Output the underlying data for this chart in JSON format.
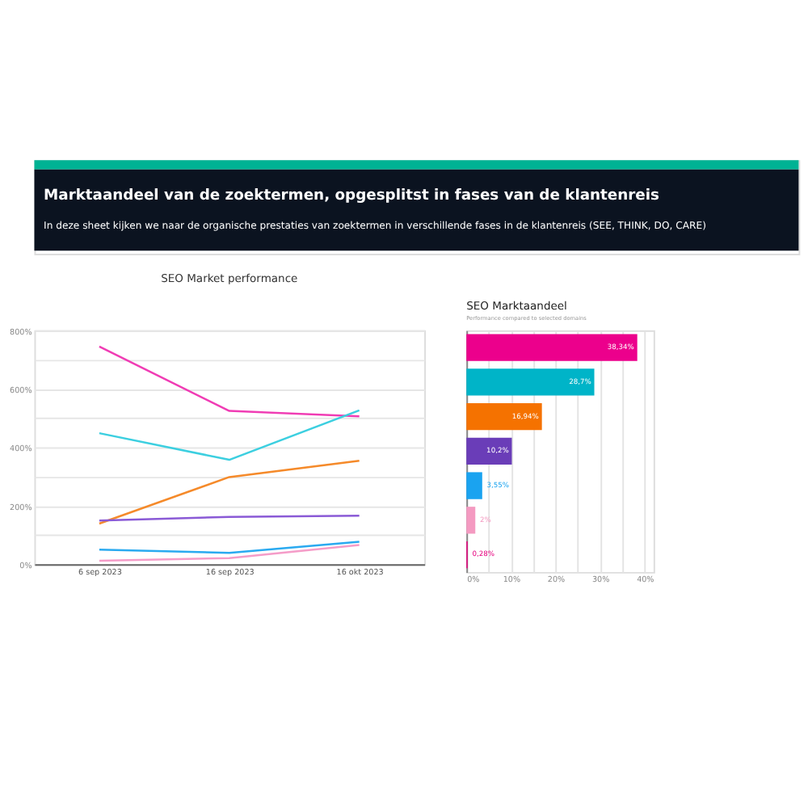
{
  "chart_data": [
    {
      "type": "other",
      "title": "Marktaandeel van de zoektermen, opgesplitst in fases van de klantenreis",
      "subtitle": "In deze sheet kijken we naar de organische prestaties van zoektermen in verschillende fases in de klantenreis (SEE, THINK, DO, CARE)"
    },
    {
      "type": "line",
      "title": "SEO Market performance",
      "categories": [
        "6 sep 2023",
        "16 sep 2023",
        "16 okt 2023"
      ],
      "series": [
        {
          "color": "#f03cb4",
          "values": [
            744,
            524,
            506
          ]
        },
        {
          "color": "#3ccfe0",
          "values": [
            448,
            357,
            526
          ]
        },
        {
          "color": "#f58a2a",
          "values": [
            139,
            298,
            354
          ]
        },
        {
          "color": "#8a5ad6",
          "values": [
            149,
            162,
            166
          ]
        },
        {
          "color": "#2aaaf0",
          "values": [
            50,
            39,
            77
          ]
        },
        {
          "color": "#f59cc8",
          "values": [
            12,
            21,
            66
          ]
        }
      ],
      "ylim": [
        0,
        800
      ],
      "yticks": [
        {
          "value": 0,
          "label": "0%"
        },
        {
          "value": 100,
          "label": null
        },
        {
          "value": 200,
          "label": "200%"
        },
        {
          "value": 300,
          "label": null
        },
        {
          "value": 400,
          "label": "400%"
        },
        {
          "value": 500,
          "label": null
        },
        {
          "value": 600,
          "label": "600%"
        },
        {
          "value": 700,
          "label": null
        },
        {
          "value": 800,
          "label": "800%"
        }
      ],
      "grid": "y",
      "legend": false,
      "marker": "none",
      "line_style": "solid"
    },
    {
      "type": "bar",
      "orientation": "horizontal",
      "title": "SEO Marktaandeel",
      "subtitle": "Performance compared to selected domains",
      "categories": [
        null,
        null,
        null,
        null,
        null,
        null,
        null
      ],
      "values": [
        38.34,
        28.7,
        16.94,
        10.2,
        3.55,
        2,
        0.28
      ],
      "colors": [
        "#ec008c",
        "#00b4c8",
        "#f57200",
        "#6a3db8",
        "#1aa3f0",
        "#f49ac1",
        "#e6007e"
      ],
      "value_labels": [
        "38,34%",
        "28,7%",
        "16,94%",
        "10,2%",
        "3,55%",
        "2%",
        "0,28%"
      ],
      "xlim": [
        0,
        42
      ],
      "xticks": [
        {
          "value": 0,
          "label": "0%"
        },
        {
          "value": 5,
          "label": null
        },
        {
          "value": 10,
          "label": "10%"
        },
        {
          "value": 15,
          "label": null
        },
        {
          "value": 20,
          "label": "20%"
        },
        {
          "value": 25,
          "label": null
        },
        {
          "value": 30,
          "label": "30%"
        },
        {
          "value": 35,
          "label": null
        },
        {
          "value": 40,
          "label": "40%"
        }
      ],
      "grid": "x"
    }
  ]
}
